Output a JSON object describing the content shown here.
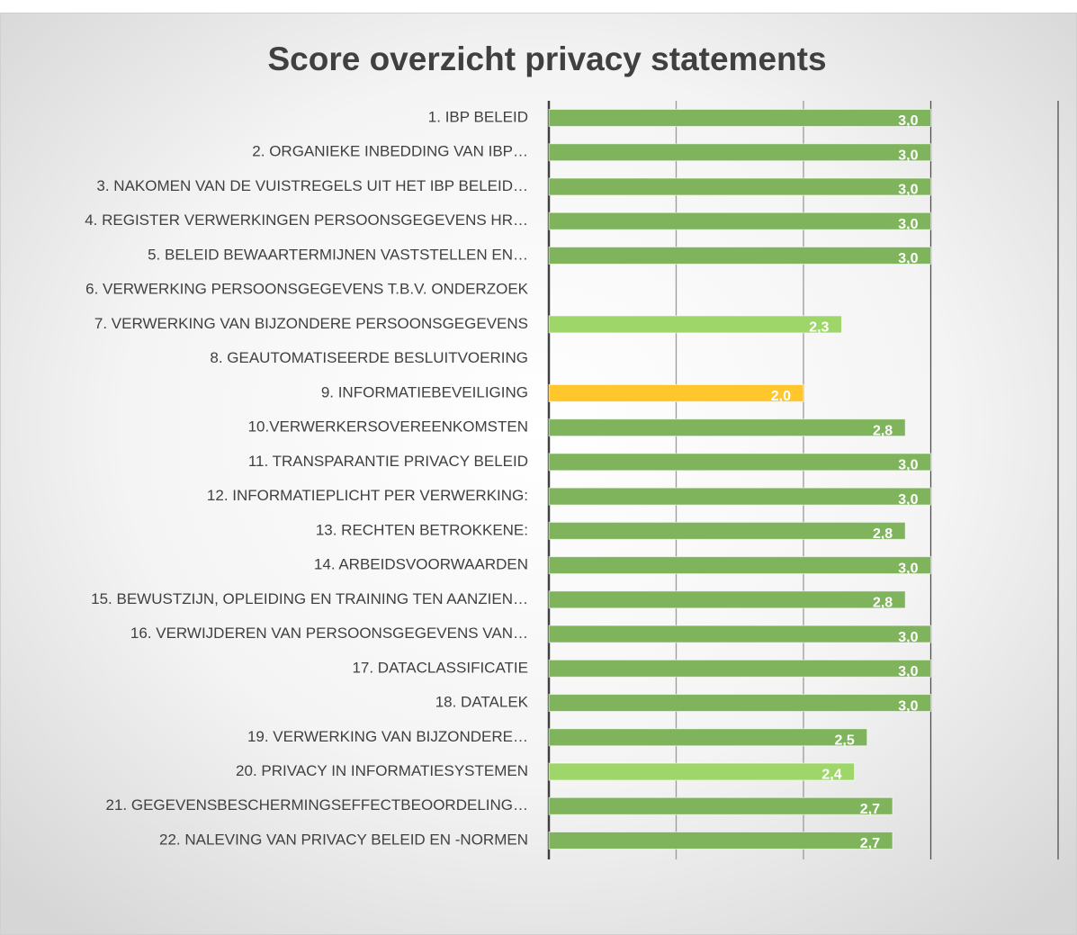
{
  "chart_data": {
    "type": "barh",
    "title": "Score overzicht privacy statements",
    "categories": [
      "1. IBP BELEID",
      "2. ORGANIEKE INBEDDING VAN IBP…",
      "3. NAKOMEN VAN DE VUISTREGELS UIT HET IBP BELEID…",
      "4. REGISTER VERWERKINGEN PERSOONSGEGEVENS HR…",
      "5. BELEID BEWAARTERMIJNEN VASTSTELLEN EN…",
      "6. VERWERKING PERSOONSGEGEVENS T.B.V. ONDERZOEK",
      "7. VERWERKING VAN BIJZONDERE PERSOONSGEGEVENS",
      "8. GEAUTOMATISEERDE BESLUITVOERING",
      "9. INFORMATIEBEVEILIGING",
      "10.VERWERKERSOVEREENKOMSTEN",
      "11. TRANSPARANTIE PRIVACY BELEID",
      "12. INFORMATIEPLICHT PER VERWERKING:",
      "13. RECHTEN BETROKKENE:",
      "14. ARBEIDSVOORWAARDEN",
      "15. BEWUSTZIJN, OPLEIDING EN TRAINING TEN AANZIEN…",
      "16. VERWIJDEREN VAN PERSOONSGEGEVENS VAN…",
      "17. DATACLASSIFICATIE",
      "18. DATALEK",
      "19. VERWERKING VAN BIJZONDERE…",
      "20. PRIVACY IN INFORMATIESYSTEMEN",
      "21. GEGEVENSBESCHERMINGSEFFECTBEOORDELING…",
      "22. NALEVING VAN PRIVACY BELEID EN -NORMEN"
    ],
    "values": [
      3.0,
      3.0,
      3.0,
      3.0,
      3.0,
      null,
      2.3,
      null,
      2.0,
      2.8,
      3.0,
      3.0,
      2.8,
      3.0,
      2.8,
      3.0,
      3.0,
      3.0,
      2.5,
      2.4,
      2.7,
      2.7
    ],
    "value_labels": [
      "3,0",
      "3,0",
      "3,0",
      "3,0",
      "3,0",
      null,
      "2,3",
      null,
      "2,0",
      "2,8",
      "3,0",
      "3,0",
      "2,8",
      "3,0",
      "2,8",
      "3,0",
      "3,0",
      "3,0",
      "2,5",
      "2,4",
      "2,7",
      "2,7"
    ],
    "colors": [
      "#7fb45c",
      "#7fb45c",
      "#7fb45c",
      "#7fb45c",
      "#7fb45c",
      "#7fb45c",
      "#9fd66a",
      "#7fb45c",
      "#ffc72c",
      "#7fb45c",
      "#7fb45c",
      "#7fb45c",
      "#7fb45c",
      "#7fb45c",
      "#7fb45c",
      "#7fb45c",
      "#7fb45c",
      "#7fb45c",
      "#7fb45c",
      "#9fd66a",
      "#7fb45c",
      "#7fb45c"
    ],
    "xlim": [
      0,
      4
    ],
    "xticks": [
      0,
      1,
      2,
      3,
      4
    ],
    "grid": true
  }
}
